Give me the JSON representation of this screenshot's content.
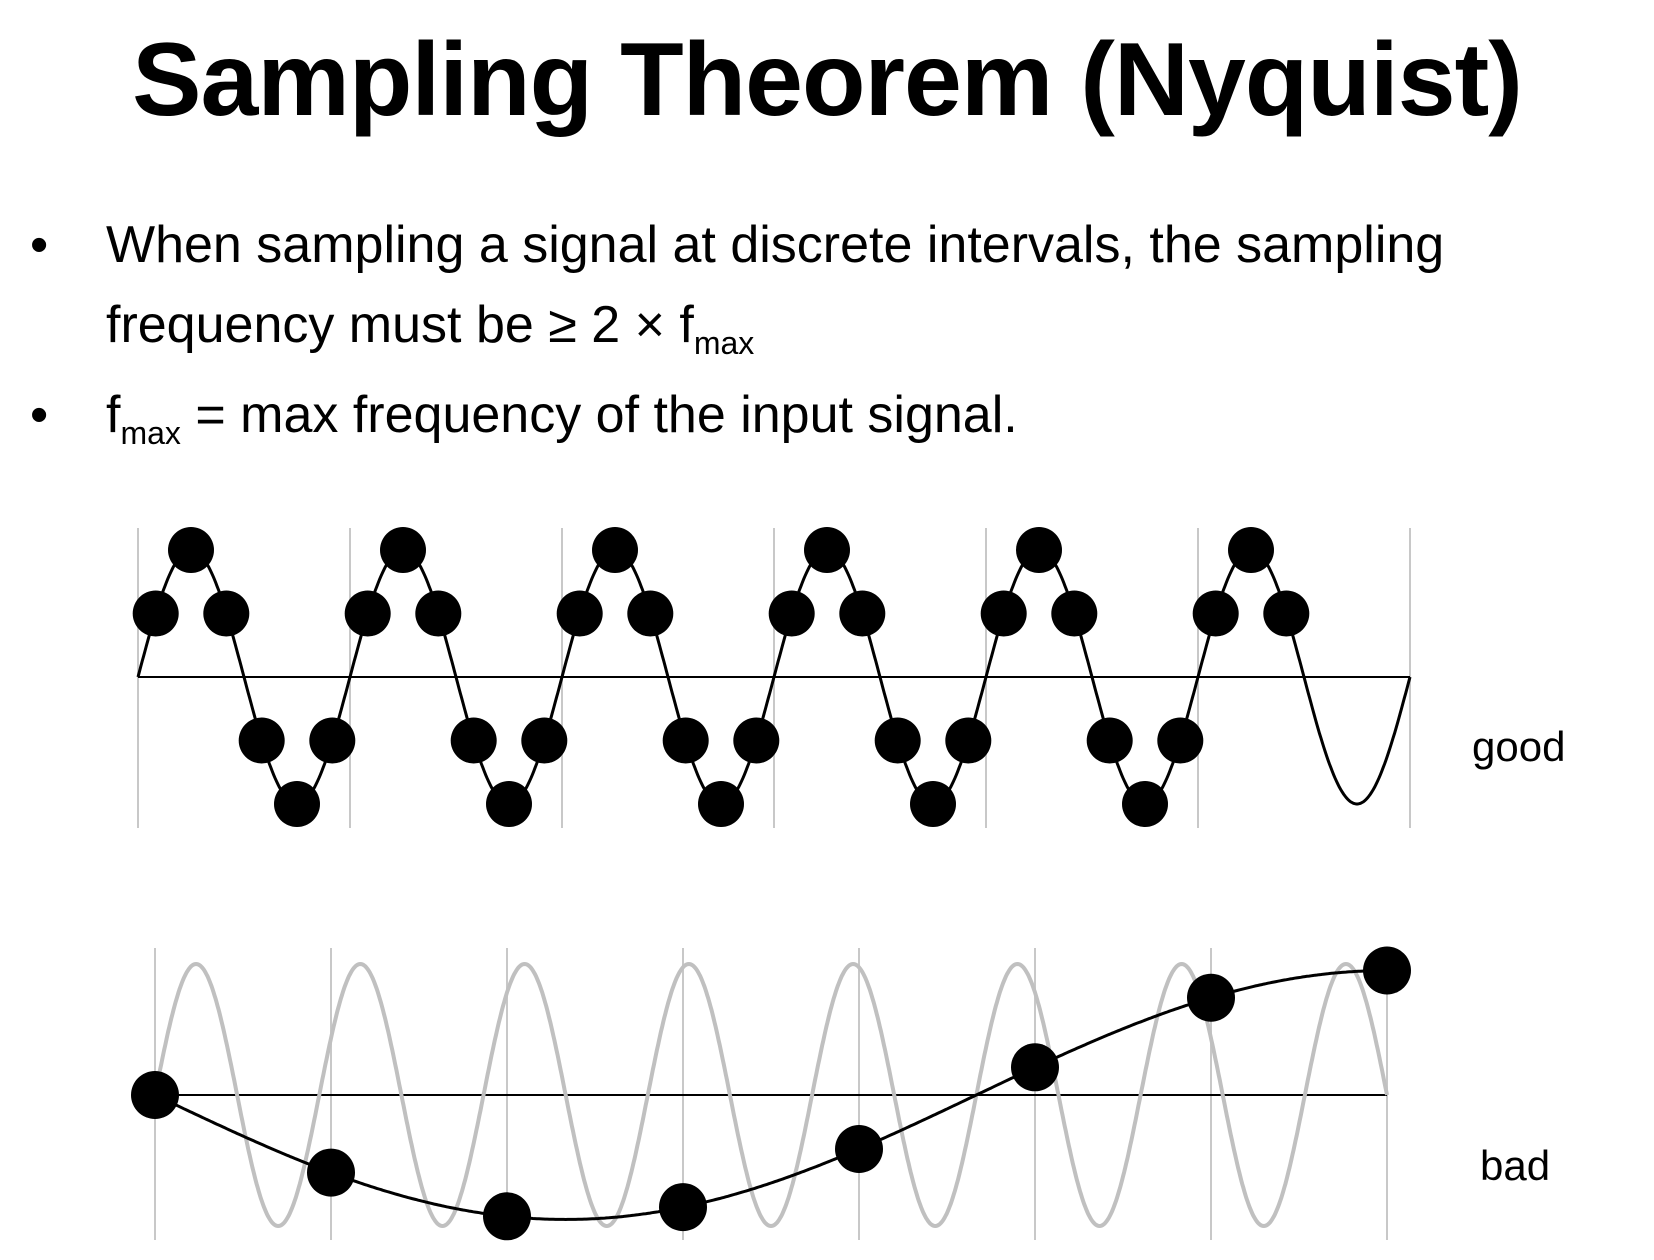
{
  "title": "Sampling Theorem (Nyquist)",
  "bullets": [
    {
      "text_before": "When sampling a signal at discrete intervals, the sampling frequency must be ≥ 2 × f",
      "sub": "max",
      "text_after": ""
    },
    {
      "text_before": "f",
      "sub": "max",
      "text_after": " = max frequency of the input signal."
    }
  ],
  "bullet_symbol": "•",
  "panels": {
    "good": {
      "label": "good",
      "signal_cycles": 6,
      "samples_per_cycle": 6,
      "sample_count": 33,
      "signal_color": "#000000",
      "sample_color": "#000000"
    },
    "bad": {
      "label": "bad",
      "signal_cycles": 7.5,
      "alias_cycles": 0.75,
      "sample_count": 8,
      "original_signal_color": "#c0c0c0",
      "alias_signal_color": "#000000",
      "sample_color": "#000000"
    }
  },
  "colors": {
    "background": "#ffffff",
    "text": "#000000",
    "gridline": "#c8c8c8",
    "axis": "#000000"
  }
}
